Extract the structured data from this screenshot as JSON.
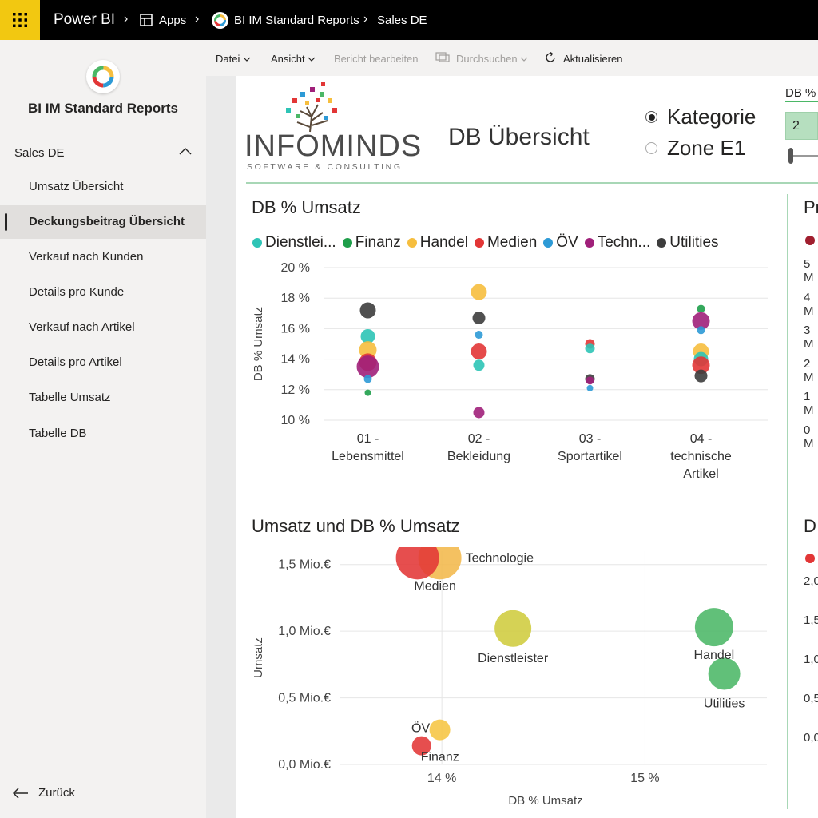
{
  "topbar": {
    "brand": "Power BI",
    "apps": "Apps",
    "report": "BI IM Standard Reports",
    "page": "Sales DE"
  },
  "sidebar": {
    "title": "BI IM Standard Reports",
    "section": "Sales DE",
    "items": [
      {
        "label": "Umsatz Übersicht"
      },
      {
        "label": "Deckungsbeitrag Übersicht"
      },
      {
        "label": "Verkauf nach Kunden"
      },
      {
        "label": "Details pro Kunde"
      },
      {
        "label": "Verkauf nach Artikel"
      },
      {
        "label": "Details pro Artikel"
      },
      {
        "label": "Tabelle Umsatz"
      },
      {
        "label": "Tabelle DB"
      }
    ],
    "active_index": 1,
    "back": "Zurück"
  },
  "actionbar": {
    "file": "Datei",
    "view": "Ansicht",
    "edit": "Bericht bearbeiten",
    "explore": "Durchsuchen",
    "refresh": "Aktualisieren"
  },
  "report": {
    "logo_main": "INFOMINDS",
    "logo_sub": "SOFTWARE & CONSULTING",
    "title": "DB Übersicht",
    "radio": [
      {
        "label": "Kategorie",
        "selected": true
      },
      {
        "label": "Zone E1",
        "selected": false
      }
    ],
    "slicer_label": "DB %",
    "slicer_value": "2",
    "right_panel_p": "Pr",
    "right_panel_d": "D",
    "right_ticks_top": [
      "5 M",
      "4 M",
      "3 M",
      "2 M",
      "1 M",
      "0 M"
    ],
    "right_ticks_bottom": [
      "2,0",
      "1,5",
      "1,0",
      "0,5",
      "0,0"
    ]
  },
  "chart_data": [
    {
      "type": "scatter",
      "title": "DB % Umsatz",
      "ylabel": "DB % Umsatz",
      "ylim": [
        10,
        20
      ],
      "yticks": [
        "20 %",
        "18 %",
        "16 %",
        "14 %",
        "12 %",
        "10 %"
      ],
      "categories": [
        {
          "line1": "01 -",
          "line2": "Lebensmittel",
          "line3": ""
        },
        {
          "line1": "02 -",
          "line2": "Bekleidung",
          "line3": ""
        },
        {
          "line1": "03 -",
          "line2": "Sportartikel",
          "line3": ""
        },
        {
          "line1": "04 -",
          "line2": "technische",
          "line3": "Artikel"
        }
      ],
      "legend": [
        {
          "label": "Dienstlei...",
          "color": "#2ec4b6"
        },
        {
          "label": "Finanz",
          "color": "#1e9e4a"
        },
        {
          "label": "Handel",
          "color": "#f6be3e"
        },
        {
          "label": "Medien",
          "color": "#e23636"
        },
        {
          "label": "ÖV",
          "color": "#2d9ad6"
        },
        {
          "label": "Techn...",
          "color": "#a0207a"
        },
        {
          "label": "Utilities",
          "color": "#3d3d3d"
        }
      ],
      "points": [
        {
          "cat": 0,
          "y": 17.2,
          "color": "#3d3d3d",
          "r": 10
        },
        {
          "cat": 0,
          "y": 15.5,
          "color": "#2ec4b6",
          "r": 9
        },
        {
          "cat": 0,
          "y": 14.6,
          "color": "#f6be3e",
          "r": 11
        },
        {
          "cat": 0,
          "y": 13.8,
          "color": "#e23636",
          "r": 11
        },
        {
          "cat": 0,
          "y": 13.5,
          "color": "#a0207a",
          "r": 14
        },
        {
          "cat": 0,
          "y": 12.7,
          "color": "#2d9ad6",
          "r": 5
        },
        {
          "cat": 0,
          "y": 11.8,
          "color": "#1e9e4a",
          "r": 4
        },
        {
          "cat": 1,
          "y": 18.4,
          "color": "#f6be3e",
          "r": 10
        },
        {
          "cat": 1,
          "y": 16.7,
          "color": "#3d3d3d",
          "r": 8
        },
        {
          "cat": 1,
          "y": 15.6,
          "color": "#2d9ad6",
          "r": 5
        },
        {
          "cat": 1,
          "y": 14.5,
          "color": "#e23636",
          "r": 10
        },
        {
          "cat": 1,
          "y": 13.6,
          "color": "#2ec4b6",
          "r": 7
        },
        {
          "cat": 1,
          "y": 10.5,
          "color": "#a0207a",
          "r": 7
        },
        {
          "cat": 2,
          "y": 15.0,
          "color": "#e23636",
          "r": 6
        },
        {
          "cat": 2,
          "y": 14.7,
          "color": "#2ec4b6",
          "r": 6
        },
        {
          "cat": 2,
          "y": 12.7,
          "color": "#3d3d3d",
          "r": 6
        },
        {
          "cat": 2,
          "y": 12.6,
          "color": "#a0207a",
          "r": 5
        },
        {
          "cat": 2,
          "y": 12.1,
          "color": "#2d9ad6",
          "r": 4
        },
        {
          "cat": 3,
          "y": 17.3,
          "color": "#1e9e4a",
          "r": 5
        },
        {
          "cat": 3,
          "y": 16.5,
          "color": "#a0207a",
          "r": 11
        },
        {
          "cat": 3,
          "y": 15.9,
          "color": "#2d9ad6",
          "r": 5
        },
        {
          "cat": 3,
          "y": 14.5,
          "color": "#f6be3e",
          "r": 10
        },
        {
          "cat": 3,
          "y": 14.0,
          "color": "#2ec4b6",
          "r": 9
        },
        {
          "cat": 3,
          "y": 13.6,
          "color": "#e23636",
          "r": 11
        },
        {
          "cat": 3,
          "y": 12.9,
          "color": "#3d3d3d",
          "r": 8
        }
      ]
    },
    {
      "type": "scatter",
      "title": "Umsatz und DB % Umsatz",
      "xlabel": "DB % Umsatz",
      "ylabel": "Umsatz",
      "xticks": [
        {
          "value": 14,
          "label": "14 %"
        },
        {
          "value": 15,
          "label": "15 %"
        }
      ],
      "yticks": [
        {
          "value": 1.5,
          "label": "1,5 Mio.€"
        },
        {
          "value": 1.0,
          "label": "1,0 Mio.€"
        },
        {
          "value": 0.5,
          "label": "0,5 Mio.€"
        },
        {
          "value": 0.0,
          "label": "0,0 Mio.€"
        }
      ],
      "xlim": [
        13.5,
        15.6
      ],
      "ylim": [
        0,
        1.6
      ],
      "points": [
        {
          "label": "Technologie",
          "x": 13.99,
          "y": 1.55,
          "color": "#f2b84b",
          "r": 27
        },
        {
          "label": "Medien",
          "x": 13.88,
          "y": 1.55,
          "color": "#e23636",
          "r": 27
        },
        {
          "label": "Dienstleister",
          "x": 14.35,
          "y": 1.02,
          "color": "#cfcc3e",
          "r": 23
        },
        {
          "label": "Handel",
          "x": 15.34,
          "y": 1.03,
          "color": "#4bb766",
          "r": 24
        },
        {
          "label": "Utilities",
          "x": 15.39,
          "y": 0.68,
          "color": "#4bb766",
          "r": 20
        },
        {
          "label": "ÖV",
          "x": 13.99,
          "y": 0.26,
          "color": "#f6c542",
          "r": 13
        },
        {
          "label": "Finanz",
          "x": 13.9,
          "y": 0.14,
          "color": "#e23636",
          "r": 12
        }
      ]
    }
  ]
}
